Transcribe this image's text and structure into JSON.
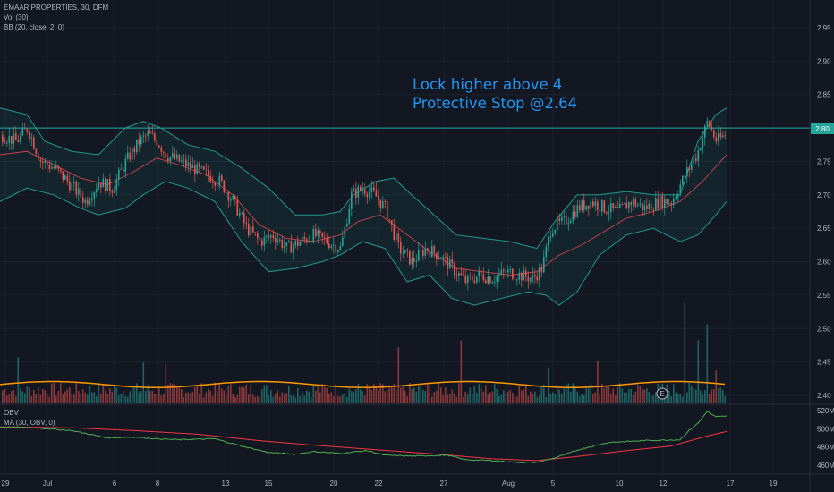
{
  "legend": {
    "symbol_line": "EMAAR PROPERTIES, 30, DFM",
    "volume_line": "Vol (30)",
    "bb_line": "BB (20, close, 2, 0)",
    "obv_line": "OBV",
    "obv_ma_line": "MA (30, OBV, 0)"
  },
  "annotation": {
    "line1": "Lock higher above 4",
    "line2": "Protective Stop @2.64"
  },
  "price_label": "2.80",
  "earnings_marker": "E",
  "colors": {
    "background": "#131722",
    "up": "#26a69a",
    "down": "#ef5350",
    "bb_band": "#1f9a8c",
    "bb_basis": "#c2404a",
    "volume_ma": "#ff9800",
    "obv": "#4caf50",
    "obv_ma": "#f23645",
    "annotation": "#2196f3",
    "horizontal_line": "#26a69a",
    "grid": "#1e222d"
  },
  "chart_data": [
    {
      "type": "candlestick",
      "title": "EMAAR PROPERTIES, 30, DFM",
      "y_ticks": [
        "2.95",
        "2.90",
        "2.85",
        "2.80",
        "2.75",
        "2.70",
        "2.65",
        "2.60",
        "2.55",
        "2.50",
        "2.45",
        "2.40"
      ],
      "ylim": [
        2.385,
        2.985
      ],
      "x_ticks": [
        "29",
        "Jul",
        "6",
        "8",
        "13",
        "15",
        "20",
        "22",
        "27",
        "Aug",
        "5",
        "10",
        "12",
        "17",
        "19"
      ],
      "horizontal_line": 2.8,
      "close_path": [
        [
          0,
          2.79
        ],
        [
          18,
          2.78
        ],
        [
          30,
          2.8
        ],
        [
          45,
          2.75
        ],
        [
          60,
          2.74
        ],
        [
          75,
          2.72
        ],
        [
          95,
          2.69
        ],
        [
          110,
          2.72
        ],
        [
          125,
          2.71
        ],
        [
          140,
          2.75
        ],
        [
          155,
          2.78
        ],
        [
          165,
          2.79
        ],
        [
          175,
          2.78
        ],
        [
          185,
          2.76
        ],
        [
          200,
          2.75
        ],
        [
          215,
          2.74
        ],
        [
          230,
          2.73
        ],
        [
          245,
          2.72
        ],
        [
          260,
          2.69
        ],
        [
          275,
          2.65
        ],
        [
          290,
          2.63
        ],
        [
          305,
          2.64
        ],
        [
          320,
          2.62
        ],
        [
          335,
          2.63
        ],
        [
          350,
          2.64
        ],
        [
          365,
          2.63
        ],
        [
          380,
          2.62
        ],
        [
          392,
          2.7
        ],
        [
          405,
          2.71
        ],
        [
          418,
          2.7
        ],
        [
          430,
          2.68
        ],
        [
          445,
          2.62
        ],
        [
          460,
          2.6
        ],
        [
          475,
          2.62
        ],
        [
          490,
          2.61
        ],
        [
          505,
          2.59
        ],
        [
          520,
          2.57
        ],
        [
          535,
          2.58
        ],
        [
          550,
          2.575
        ],
        [
          565,
          2.585
        ],
        [
          580,
          2.58
        ],
        [
          595,
          2.575
        ],
        [
          605,
          2.59
        ],
        [
          615,
          2.65
        ],
        [
          630,
          2.66
        ],
        [
          645,
          2.68
        ],
        [
          660,
          2.69
        ],
        [
          675,
          2.68
        ],
        [
          690,
          2.675
        ],
        [
          705,
          2.69
        ],
        [
          720,
          2.68
        ],
        [
          735,
          2.69
        ],
        [
          750,
          2.69
        ],
        [
          765,
          2.73
        ],
        [
          778,
          2.76
        ],
        [
          790,
          2.81
        ],
        [
          800,
          2.78
        ],
        [
          810,
          2.79
        ]
      ],
      "bb_upper": [
        [
          0,
          2.83
        ],
        [
          30,
          2.82
        ],
        [
          50,
          2.78
        ],
        [
          80,
          2.765
        ],
        [
          110,
          2.76
        ],
        [
          140,
          2.8
        ],
        [
          160,
          2.81
        ],
        [
          180,
          2.8
        ],
        [
          210,
          2.775
        ],
        [
          240,
          2.765
        ],
        [
          270,
          2.74
        ],
        [
          300,
          2.71
        ],
        [
          330,
          2.67
        ],
        [
          360,
          2.67
        ],
        [
          380,
          2.675
        ],
        [
          395,
          2.7
        ],
        [
          420,
          2.72
        ],
        [
          440,
          2.725
        ],
        [
          460,
          2.7
        ],
        [
          485,
          2.67
        ],
        [
          510,
          2.64
        ],
        [
          540,
          2.635
        ],
        [
          570,
          2.63
        ],
        [
          600,
          2.62
        ],
        [
          620,
          2.66
        ],
        [
          645,
          2.7
        ],
        [
          670,
          2.7
        ],
        [
          700,
          2.705
        ],
        [
          730,
          2.7
        ],
        [
          760,
          2.7
        ],
        [
          780,
          2.78
        ],
        [
          800,
          2.82
        ],
        [
          812,
          2.83
        ]
      ],
      "bb_lower": [
        [
          0,
          2.69
        ],
        [
          30,
          2.71
        ],
        [
          60,
          2.7
        ],
        [
          90,
          2.68
        ],
        [
          110,
          2.67
        ],
        [
          140,
          2.68
        ],
        [
          160,
          2.7
        ],
        [
          185,
          2.72
        ],
        [
          210,
          2.71
        ],
        [
          240,
          2.69
        ],
        [
          270,
          2.63
        ],
        [
          300,
          2.585
        ],
        [
          330,
          2.59
        ],
        [
          360,
          2.6
        ],
        [
          380,
          2.61
        ],
        [
          405,
          2.63
        ],
        [
          430,
          2.62
        ],
        [
          455,
          2.57
        ],
        [
          480,
          2.58
        ],
        [
          505,
          2.545
        ],
        [
          530,
          2.535
        ],
        [
          560,
          2.545
        ],
        [
          590,
          2.555
        ],
        [
          610,
          2.55
        ],
        [
          625,
          2.535
        ],
        [
          645,
          2.555
        ],
        [
          670,
          2.61
        ],
        [
          700,
          2.64
        ],
        [
          730,
          2.65
        ],
        [
          760,
          2.63
        ],
        [
          780,
          2.64
        ],
        [
          800,
          2.67
        ],
        [
          812,
          2.69
        ]
      ],
      "bb_basis": [
        [
          0,
          2.76
        ],
        [
          30,
          2.765
        ],
        [
          60,
          2.745
        ],
        [
          90,
          2.725
        ],
        [
          120,
          2.715
        ],
        [
          150,
          2.735
        ],
        [
          175,
          2.755
        ],
        [
          200,
          2.745
        ],
        [
          230,
          2.73
        ],
        [
          260,
          2.7
        ],
        [
          290,
          2.655
        ],
        [
          320,
          2.635
        ],
        [
          350,
          2.63
        ],
        [
          380,
          2.64
        ],
        [
          400,
          2.66
        ],
        [
          425,
          2.67
        ],
        [
          450,
          2.645
        ],
        [
          480,
          2.615
        ],
        [
          510,
          2.59
        ],
        [
          540,
          2.585
        ],
        [
          570,
          2.58
        ],
        [
          600,
          2.585
        ],
        [
          625,
          2.61
        ],
        [
          650,
          2.625
        ],
        [
          675,
          2.645
        ],
        [
          700,
          2.665
        ],
        [
          730,
          2.675
        ],
        [
          760,
          2.69
        ],
        [
          785,
          2.72
        ],
        [
          812,
          2.76
        ]
      ]
    },
    {
      "type": "bar",
      "series_name": "Vol (30)",
      "ylim": [
        0,
        1
      ],
      "spikes": [
        [
          20,
          0.45
        ],
        [
          160,
          0.4
        ],
        [
          185,
          0.38
        ],
        [
          445,
          0.55
        ],
        [
          515,
          0.62
        ],
        [
          612,
          0.35
        ],
        [
          668,
          0.42
        ],
        [
          765,
          1.0
        ],
        [
          780,
          0.62
        ],
        [
          790,
          0.78
        ],
        [
          800,
          0.32
        ]
      ],
      "ma_level": 0.18
    },
    {
      "type": "line",
      "title": "OBV",
      "y_ticks": [
        "520M",
        "500M",
        "480M",
        "460M"
      ],
      "ylim": [
        450,
        525
      ],
      "obv": [
        [
          0,
          502
        ],
        [
          40,
          501
        ],
        [
          80,
          498
        ],
        [
          120,
          490
        ],
        [
          150,
          491
        ],
        [
          175,
          489
        ],
        [
          200,
          488
        ],
        [
          240,
          489
        ],
        [
          270,
          481
        ],
        [
          300,
          474
        ],
        [
          330,
          472
        ],
        [
          350,
          475
        ],
        [
          380,
          473
        ],
        [
          410,
          476
        ],
        [
          430,
          471
        ],
        [
          460,
          470
        ],
        [
          500,
          471
        ],
        [
          520,
          466
        ],
        [
          550,
          465
        ],
        [
          580,
          463
        ],
        [
          600,
          463
        ],
        [
          620,
          468
        ],
        [
          650,
          478
        ],
        [
          680,
          485
        ],
        [
          720,
          487
        ],
        [
          760,
          488
        ],
        [
          770,
          498
        ],
        [
          780,
          506
        ],
        [
          790,
          519
        ],
        [
          800,
          513
        ],
        [
          812,
          514
        ]
      ],
      "obv_ma": [
        [
          0,
          502
        ],
        [
          80,
          501
        ],
        [
          150,
          498
        ],
        [
          220,
          494
        ],
        [
          290,
          487
        ],
        [
          350,
          482
        ],
        [
          420,
          477
        ],
        [
          490,
          472
        ],
        [
          550,
          467
        ],
        [
          600,
          465
        ],
        [
          650,
          470
        ],
        [
          700,
          476
        ],
        [
          750,
          481
        ],
        [
          790,
          492
        ],
        [
          812,
          497
        ]
      ]
    }
  ]
}
